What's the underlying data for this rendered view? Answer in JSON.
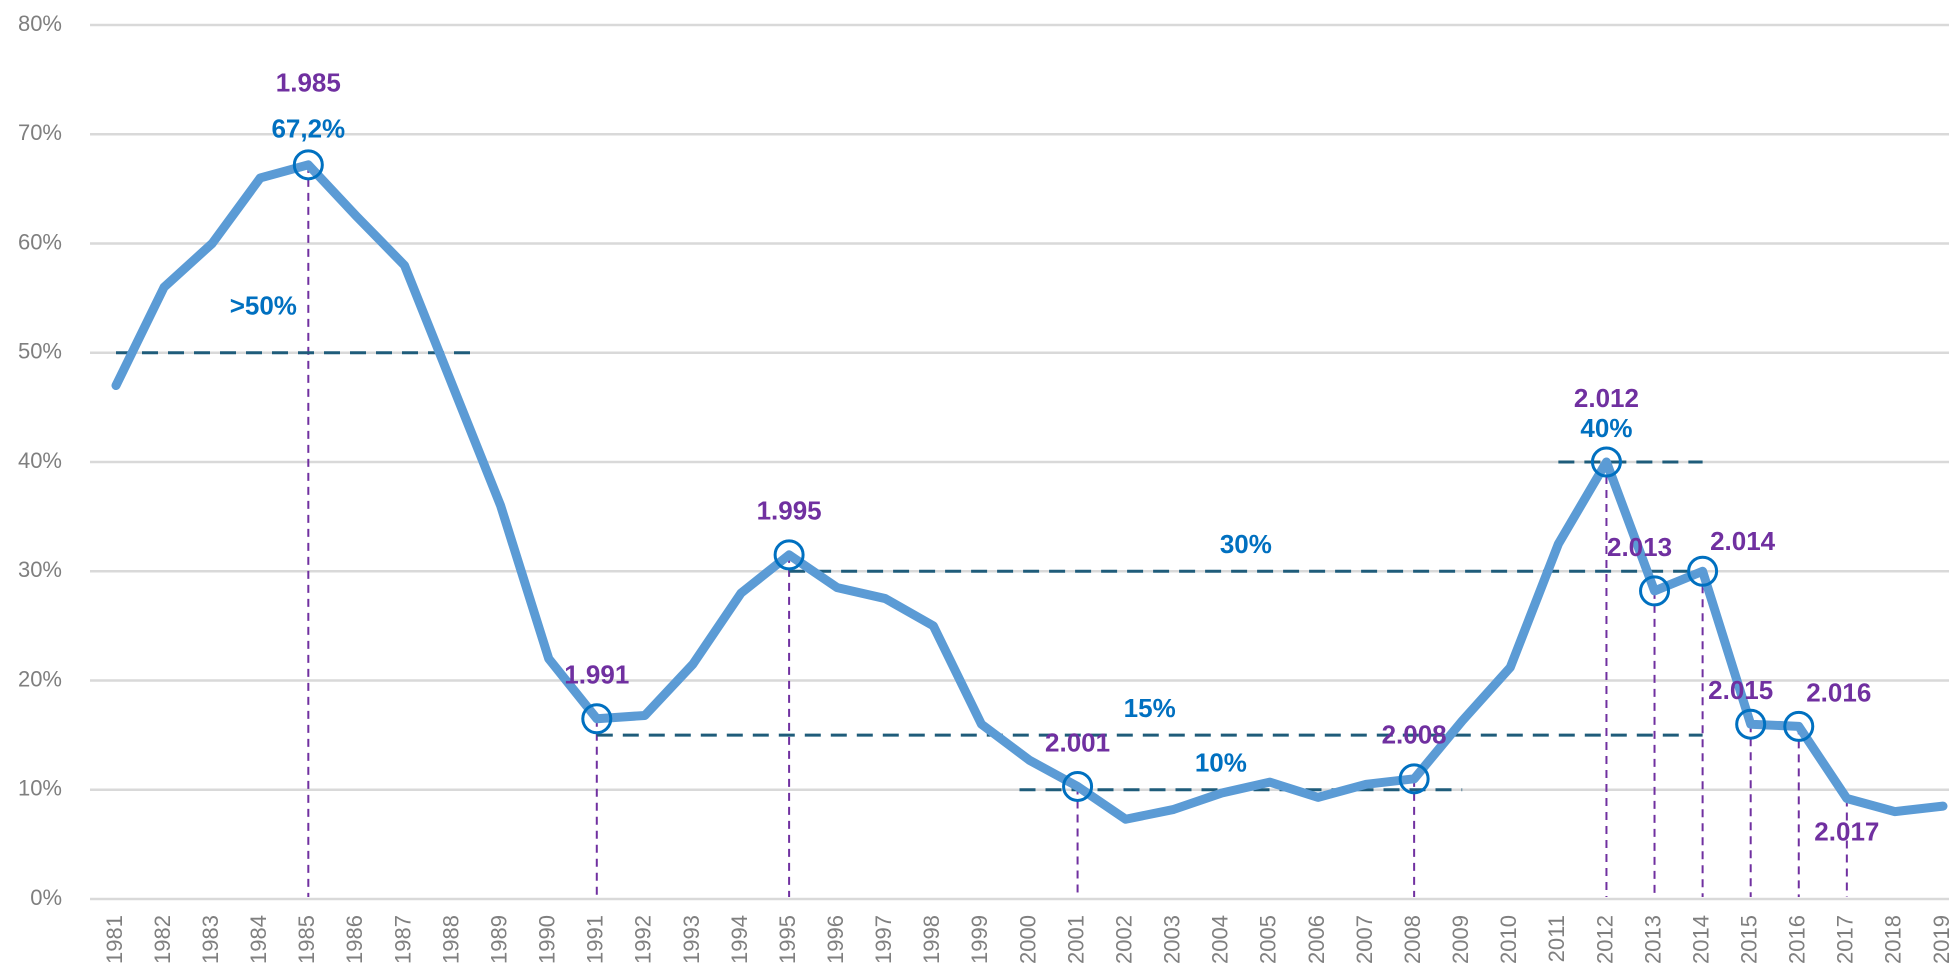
{
  "chart_data": {
    "type": "line",
    "categories": [
      "1981",
      "1982",
      "1983",
      "1984",
      "1985",
      "1986",
      "1987",
      "1988",
      "1989",
      "1990",
      "1991",
      "1992",
      "1993",
      "1994",
      "1995",
      "1996",
      "1997",
      "1998",
      "1999",
      "2000",
      "2001",
      "2002",
      "2003",
      "2004",
      "2005",
      "2006",
      "2007",
      "2008",
      "2009",
      "2010",
      "2011",
      "2012",
      "2013",
      "2014",
      "2015",
      "2016",
      "2017",
      "2018",
      "2019"
    ],
    "values": [
      47,
      56,
      60,
      66,
      67.2,
      62.5,
      58,
      47,
      36,
      22,
      16.5,
      16.8,
      21.5,
      28,
      31.5,
      28.5,
      27.5,
      25,
      16,
      12.7,
      10.3,
      7.3,
      8.2,
      9.7,
      10.7,
      9.3,
      10.5,
      11,
      16.3,
      21.2,
      32.5,
      40,
      28.2,
      30,
      16,
      15.8,
      9.2,
      8,
      8.5
    ],
    "value_labels": [
      null,
      null,
      null,
      null,
      "67,2%",
      null,
      null,
      null,
      null,
      null,
      null,
      null,
      null,
      null,
      null,
      null,
      null,
      null,
      null,
      null,
      null,
      null,
      null,
      null,
      null,
      null,
      null,
      null,
      null,
      null,
      null,
      null,
      null,
      null,
      null,
      null,
      null,
      null,
      null
    ],
    "color": "#5b9bd5",
    "ylim": [
      0,
      80
    ],
    "yticks": [
      {
        "value": 0,
        "label": "0%"
      },
      {
        "value": 10,
        "label": "10%"
      },
      {
        "value": 20,
        "label": "20%"
      },
      {
        "value": 30,
        "label": "30%"
      },
      {
        "value": 40,
        "label": "40%"
      },
      {
        "value": 50,
        "label": "50%"
      },
      {
        "value": 60,
        "label": "60%"
      },
      {
        "value": 70,
        "label": "70%"
      },
      {
        "value": 80,
        "label": "80%"
      }
    ],
    "grid": true,
    "reference_lines": [
      {
        "value": 50,
        "label": ">50%",
        "from": "1981",
        "to": "1988"
      },
      {
        "value": 30,
        "label": "30%",
        "from": "1995",
        "to": "2014"
      },
      {
        "value": 15,
        "label": "15%",
        "from": "1991",
        "to": "2014"
      },
      {
        "value": 10,
        "label": "10%",
        "from": "2000",
        "to": "2009"
      },
      {
        "value": 40,
        "label": "40%",
        "from": "2011",
        "to": "2014"
      }
    ],
    "highlights": [
      {
        "category": "1985",
        "label": "1.985",
        "circle": true
      },
      {
        "category": "1991",
        "label": "1.991",
        "circle": true
      },
      {
        "category": "1995",
        "label": "1.995",
        "circle": true
      },
      {
        "category": "2001",
        "label": "2.001",
        "circle": true
      },
      {
        "category": "2008",
        "label": "2.008",
        "circle": true
      },
      {
        "category": "2012",
        "label": "2.012",
        "circle": true
      },
      {
        "category": "2013",
        "label": "2.013",
        "circle": true
      },
      {
        "category": "2014",
        "label": "2.014",
        "circle": true
      },
      {
        "category": "2015",
        "label": "2.015",
        "circle": true
      },
      {
        "category": "2016",
        "label": "2.016",
        "circle": true
      },
      {
        "category": "2017",
        "label": "2.017",
        "circle": false
      }
    ]
  }
}
